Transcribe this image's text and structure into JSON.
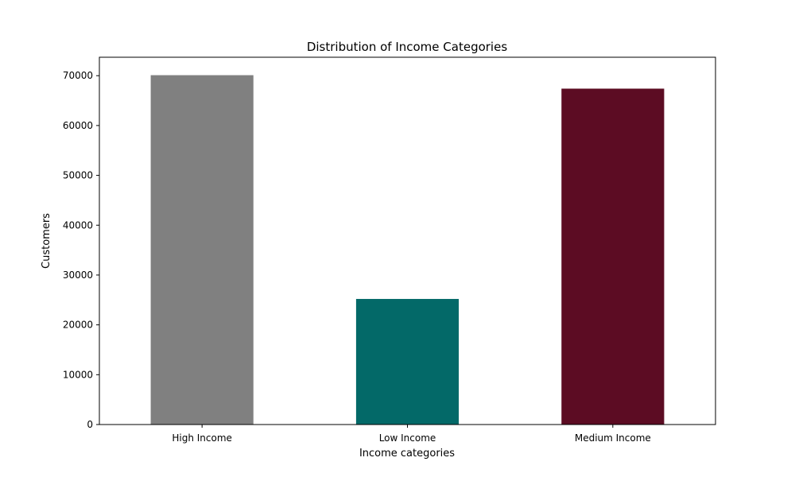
{
  "chart_data": {
    "type": "bar",
    "title": "Distribution of Income Categories",
    "xlabel": "Income categories",
    "ylabel": "Customers",
    "categories": [
      "High Income",
      "Low Income",
      "Medium Income"
    ],
    "values": [
      70100,
      25200,
      67400
    ],
    "colors": [
      "#808080",
      "#036968",
      "#5c0c23"
    ],
    "ylim": [
      0,
      73700
    ],
    "yticks": [
      0,
      10000,
      20000,
      30000,
      40000,
      50000,
      60000,
      70000
    ],
    "grid": false,
    "legend": "none"
  }
}
